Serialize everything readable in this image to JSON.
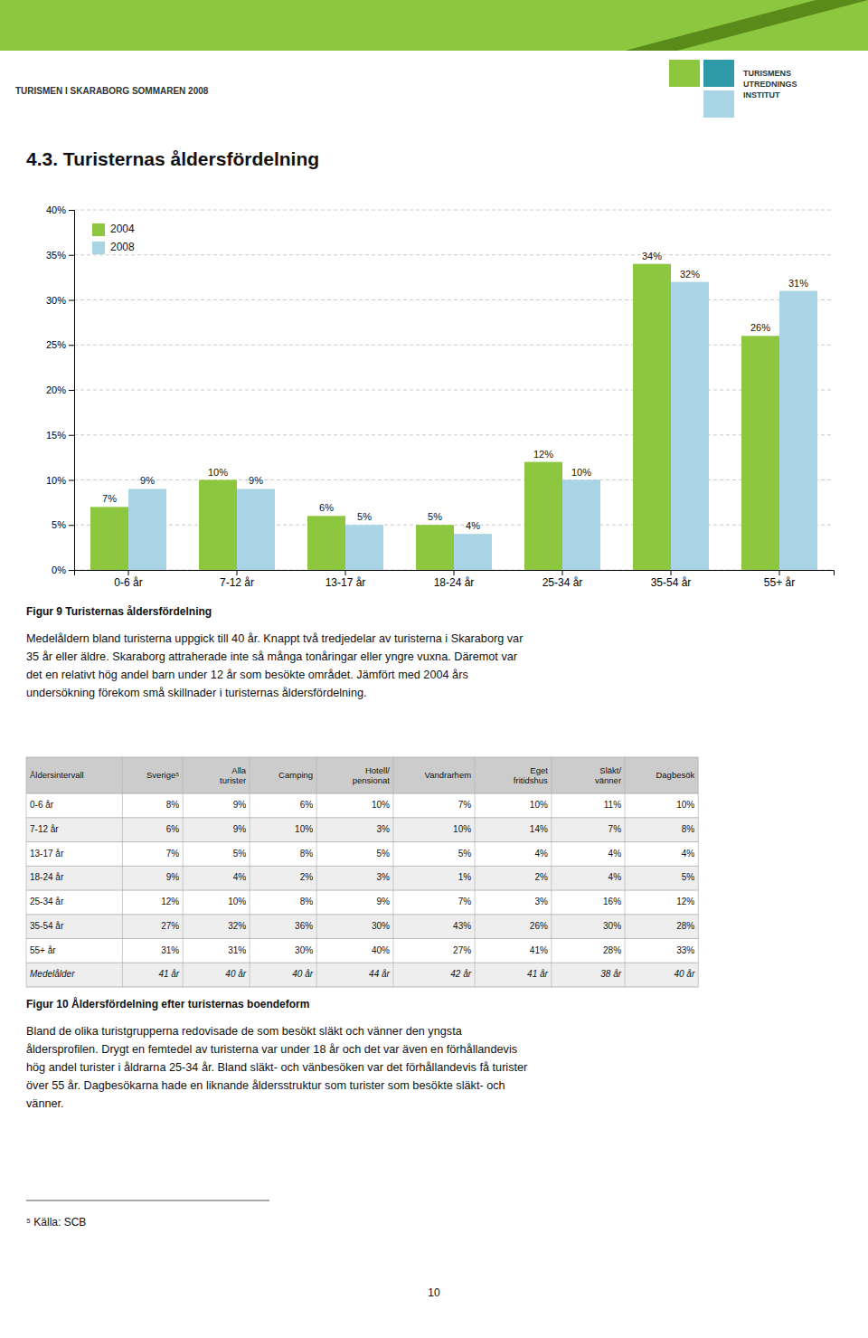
{
  "chart_data": {
    "type": "bar",
    "title": "Figur 9 Turisternas åldersfördelning",
    "categories": [
      "0-6 år",
      "7-12 år",
      "13-17 år",
      "18-24 år",
      "25-34 år",
      "35-54 år",
      "55+ år"
    ],
    "series": [
      {
        "name": "2004",
        "color": "#8dc63f",
        "values": [
          7,
          10,
          6,
          5,
          12,
          34,
          26
        ],
        "value_labels": [
          "7%",
          "10%",
          "6%",
          "5%",
          "12%",
          "34%",
          "26%"
        ]
      },
      {
        "name": "2008",
        "color": "#a8d4e6",
        "values": [
          9,
          9,
          5,
          4,
          10,
          32,
          31
        ],
        "value_labels": [
          "9%",
          "9%",
          "5%",
          "4%",
          "10%",
          "32%",
          "31%"
        ]
      }
    ],
    "ylim": [
      0,
      40
    ],
    "yticks": [
      {
        "value": 0,
        "label": "0%"
      },
      {
        "value": 5,
        "label": "5%"
      },
      {
        "value": 10,
        "label": "10%"
      },
      {
        "value": 15,
        "label": "15%"
      },
      {
        "value": 20,
        "label": "20%"
      },
      {
        "value": 25,
        "label": "25%"
      },
      {
        "value": 30,
        "label": "30%"
      },
      {
        "value": 35,
        "label": "35%"
      },
      {
        "value": 40,
        "label": "40%"
      }
    ],
    "grid": true,
    "legend": "upper-left",
    "data_labels": true
  },
  "page": {
    "header_text": "TURISMEN I SKARABORG SOMMAREN 2008",
    "logo_text": "TURISMENS\nUTREDNINGS\nINSTITUT",
    "section_title": "4.3.  Turisternas åldersfördelning",
    "para1": "Medelåldern bland turisterna uppgick till 40 år. Knappt två tredjedelar av turisterna i Skaraborg var\n35 år eller äldre. Skaraborg attraherade inte så många tonåringar eller yngre vuxna. Däremot var\ndet en relativt hög andel barn under 12 år som besökte området. Jämfört med 2004 års\nundersökning förekom små skillnader i turisternas åldersfördelning.",
    "table": {
      "caption": "Figur 10 Åldersfördelning efter turisternas boendeform",
      "headers": [
        "Åldersintervall",
        "Sverige⁵",
        "Alla\nturister",
        "Camping",
        "Hotell/\npensionat",
        "Vandrarhem",
        "Eget\nfritidshus",
        "Släkt/\nvänner",
        "Dagbesök"
      ],
      "rows": [
        [
          "0-6 år",
          "8%",
          "9%",
          "6%",
          "10%",
          "7%",
          "10%",
          "11%",
          "10%"
        ],
        [
          "7-12 år",
          "6%",
          "9%",
          "10%",
          "3%",
          "10%",
          "14%",
          "7%",
          "8%"
        ],
        [
          "13-17 år",
          "7%",
          "5%",
          "8%",
          "5%",
          "5%",
          "4%",
          "4%",
          "4%"
        ],
        [
          "18-24 år",
          "9%",
          "4%",
          "2%",
          "3%",
          "1%",
          "2%",
          "4%",
          "5%"
        ],
        [
          "25-34 år",
          "12%",
          "10%",
          "8%",
          "9%",
          "7%",
          "3%",
          "16%",
          "12%"
        ],
        [
          "35-54 år",
          "27%",
          "32%",
          "36%",
          "30%",
          "43%",
          "26%",
          "30%",
          "28%"
        ],
        [
          "55+ år",
          "31%",
          "31%",
          "30%",
          "40%",
          "27%",
          "41%",
          "28%",
          "33%"
        ],
        [
          "Medelålder",
          "41 år",
          "40 år",
          "40 år",
          "44 år",
          "42 år",
          "41 år",
          "38 år",
          "40 år"
        ]
      ]
    },
    "para2": "Bland de olika turistgrupperna redovisade de som besökt släkt och vänner den yngsta\nåldersprofilen. Drygt en femtedel av turisterna var under 18 år och det var även en förhållandevis\nhög andel turister i åldrarna 25-34 år. Bland släkt- och vänbesöken var det förhållandevis få turister\növer 55 år. Dagbesökarna hade en liknande åldersstruktur som turister som besökte släkt- och\nvänner.",
    "footnote": "⁵ Källa: SCB",
    "page_number": "10",
    "colors": {
      "header_bar": "#8dc63f",
      "header_bar_dark": "#5a8a1a",
      "logo_green": "#8dc63f",
      "logo_teal": "#2e9aa8",
      "logo_blue": "#a8d4e6",
      "table_header_bg": "#cccccc",
      "table_row_alt": "#eeeeee",
      "table_border": "#aaaaaa"
    }
  }
}
